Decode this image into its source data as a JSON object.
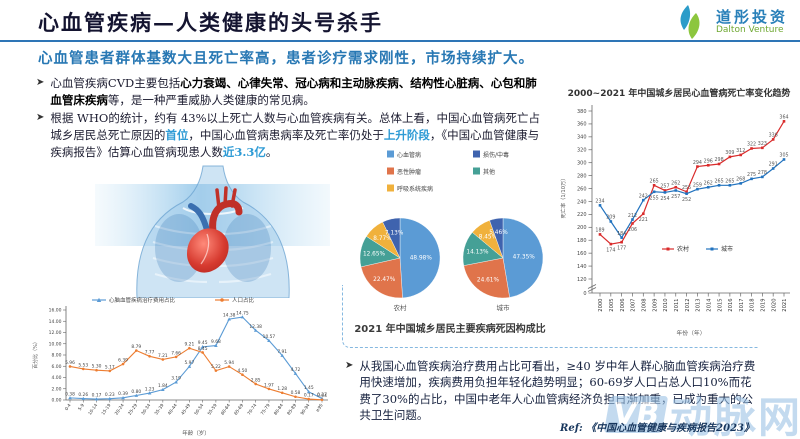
{
  "header": {
    "title": "心血管疾病—人类健康的头号杀手",
    "logo_cn": "道彤投资",
    "logo_en": "Dalton Venture"
  },
  "subtitle": "心血管患者群体基数大且死亡率高，患者诊疗需求刚性，市场持续扩大。",
  "bullets": [
    {
      "segments": [
        {
          "t": "心血管疾病CVD主要包括"
        },
        {
          "t": "心力衰竭、心律失常、冠心病和主动脉疾病、结构性心脏病、心包和肺血管床疾病",
          "b": true
        },
        {
          "t": "等，是一种严重威胁人类健康的常见病。"
        }
      ]
    },
    {
      "segments": [
        {
          "t": "根据 WHO的统计，约有 43%以上死亡人数与心血管疾病有关。总体上看，中国心血管病死亡占城乡居民总死亡原因的"
        },
        {
          "t": "首位",
          "hl": true
        },
        {
          "t": "，中国心血管病患病率及死亡率仍处于"
        },
        {
          "t": "上升阶段",
          "hl": true
        },
        {
          "t": "，《中国心血管健康与疾病报告》估算心血管病现患人数"
        },
        {
          "t": "近3.3亿",
          "hl": true
        },
        {
          "t": "。"
        }
      ]
    }
  ],
  "bottom_bullet": {
    "segments": [
      {
        "t": "从我国心血管疾病治疗费用占比可看出，≥40 岁中年人群心脑血管疾病治疗费用快速增加，疾病费用负担年轻化趋势明显；60-69岁人口占总人口10%而花费了30%的占比，中国中老年人心血管病经济负担日渐加重，已成为重大的公共卫生问题。"
      }
    ]
  },
  "ref": "Ref: 《中国心血管健康与疾病报告2023》",
  "watermark": {
    "mark": "VB",
    "text": "动脉网"
  },
  "chart_data": [
    {
      "id": "mortality_trend",
      "type": "line",
      "title": "2000~2021 年中国城乡居民心血管病死亡率变化趋势",
      "x": [
        "2000",
        "2005",
        "2006",
        "2007",
        "2008",
        "2009",
        "2010",
        "2011",
        "2012",
        "2013",
        "2014",
        "2015",
        "2016",
        "2017",
        "2018",
        "2019",
        "2020",
        "2021"
      ],
      "series": [
        {
          "name": "农村",
          "color": "#d92b2b",
          "values": [
            189,
            174,
            177,
            206,
            221,
            265,
            257,
            262,
            255,
            294,
            296,
            298,
            309,
            312,
            322,
            323,
            336,
            364
          ]
        },
        {
          "name": "城市",
          "color": "#2273bf",
          "values": [
            234,
            209,
            184,
            212,
            242,
            255,
            254,
            257,
            252,
            259,
            262,
            265,
            265,
            268,
            275,
            278,
            291,
            305
          ]
        }
      ],
      "xlabel": "年份（年）",
      "ylabel": "死亡率（1/10万）",
      "ylim": [
        120,
        380
      ],
      "yticks": [
        0,
        120,
        140,
        160,
        180,
        200,
        220,
        240,
        260,
        280,
        300,
        320,
        340,
        360,
        380
      ],
      "axis_break": true,
      "legend_position": "inside-right",
      "grid": false
    },
    {
      "id": "death_cause_pies",
      "type": "pie",
      "caption": "2021 年中国城乡居民主要疾病死因构成比",
      "legend": [
        {
          "label": "心血管病",
          "color": "#5b9bd5"
        },
        {
          "label": "损伤/中毒",
          "color": "#3f63ae"
        },
        {
          "label": "恶性肿瘤",
          "color": "#e0744b"
        },
        {
          "label": "其他",
          "color": "#45a096"
        },
        {
          "label": "呼吸系统疾病",
          "color": "#f0b13c"
        }
      ],
      "pies": [
        {
          "name": "农村",
          "slices": [
            {
              "label": "心血管病",
              "value": 48.98
            },
            {
              "label": "恶性肿瘤",
              "value": 22.47
            },
            {
              "label": "其他",
              "value": 12.65
            },
            {
              "label": "呼吸系统疾病",
              "value": 8.77
            },
            {
              "label": "损伤/中毒",
              "value": 7.13
            }
          ]
        },
        {
          "name": "城市",
          "slices": [
            {
              "label": "心血管病",
              "value": 47.35
            },
            {
              "label": "恶性肿瘤",
              "value": 24.61
            },
            {
              "label": "其他",
              "value": 14.13
            },
            {
              "label": "呼吸系统疾病",
              "value": 8.45
            },
            {
              "label": "损伤/中毒",
              "value": 5.46
            }
          ]
        }
      ]
    },
    {
      "id": "cost_share_by_age",
      "type": "line",
      "x": [
        "0-4",
        "5-9",
        "10-14",
        "15-19",
        "20-24",
        "25-29",
        "30-34",
        "35-39",
        "40-44",
        "45-49",
        "50-54",
        "55-59",
        "60-64",
        "65-69",
        "70-74",
        "75-79",
        "80-84",
        "85-89",
        "90-94",
        "≥95"
      ],
      "series": [
        {
          "name": "心脑血管疾病治疗费用占比",
          "color": "#5b9bd5",
          "marker": "triangle",
          "values": [
            0.38,
            0.26,
            0.17,
            0.23,
            0.39,
            0.8,
            1.23,
            1.84,
            3.19,
            5.97,
            9.45,
            9.68,
            14.38,
            14.75,
            12.38,
            10.57,
            7.91,
            4.72,
            1.45,
            0.27
          ]
        },
        {
          "name": "人口占比",
          "color": "#ed7d31",
          "marker": "circle",
          "values": [
            5.96,
            5.53,
            5.3,
            5.17,
            6.39,
            8.79,
            7.77,
            7.21,
            7.66,
            9.21,
            8.45,
            5.22,
            5.94,
            4.5,
            2.85,
            1.97,
            1.28,
            0.58,
            0.17,
            0.04
          ]
        }
      ],
      "xlabel": "年龄（岁）",
      "ylabel": "百分比（%）",
      "ylim": [
        0,
        16
      ],
      "yticks": [
        0,
        2,
        4,
        6,
        8,
        10,
        12,
        14,
        16
      ],
      "legend_position": "top",
      "grid": false
    }
  ]
}
